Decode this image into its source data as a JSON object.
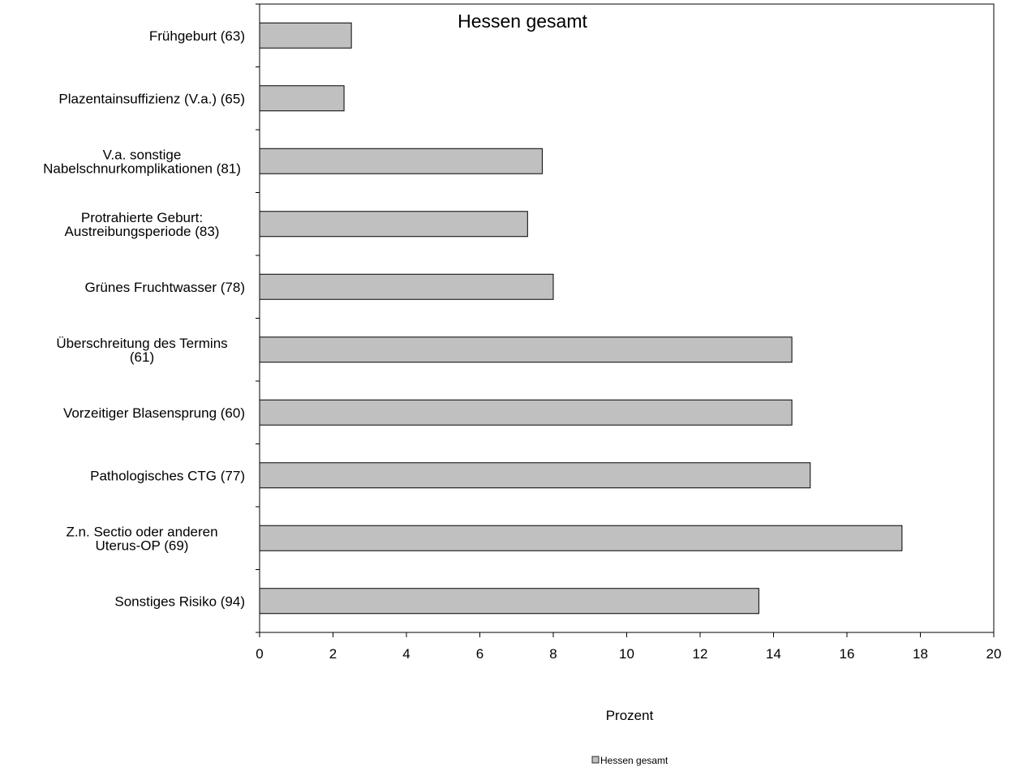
{
  "chart_data": {
    "type": "bar",
    "orientation": "horizontal",
    "title": "Hessen gesamt",
    "xlabel": "Prozent",
    "ylabel": "",
    "xlim": [
      0,
      20
    ],
    "xticks": [
      0,
      2,
      4,
      6,
      8,
      10,
      12,
      14,
      16,
      18,
      20
    ],
    "grid": false,
    "legend_position": "bottom",
    "categories": [
      [
        "Frühgeburt (63)"
      ],
      [
        "Plazentainsuffizienz (V.a.) (65)"
      ],
      [
        "V.a. sonstige",
        "Nabelschnurkomplikationen (81)"
      ],
      [
        "Protrahierte Geburt:",
        "Austreibungsperiode (83)"
      ],
      [
        "Grünes Fruchtwasser (78)"
      ],
      [
        "Überschreitung des Termins",
        "(61)"
      ],
      [
        "Vorzeitiger Blasensprung (60)"
      ],
      [
        "Pathologisches CTG (77)"
      ],
      [
        "Z.n. Sectio oder anderen",
        "Uterus-OP (69)"
      ],
      [
        "Sonstiges Risiko (94)"
      ]
    ],
    "series": [
      {
        "name": "Hessen gesamt",
        "color": "#c0c0c0",
        "values": [
          2.5,
          2.3,
          7.7,
          7.3,
          8.0,
          14.5,
          14.5,
          15.0,
          17.5,
          13.6
        ]
      }
    ]
  }
}
